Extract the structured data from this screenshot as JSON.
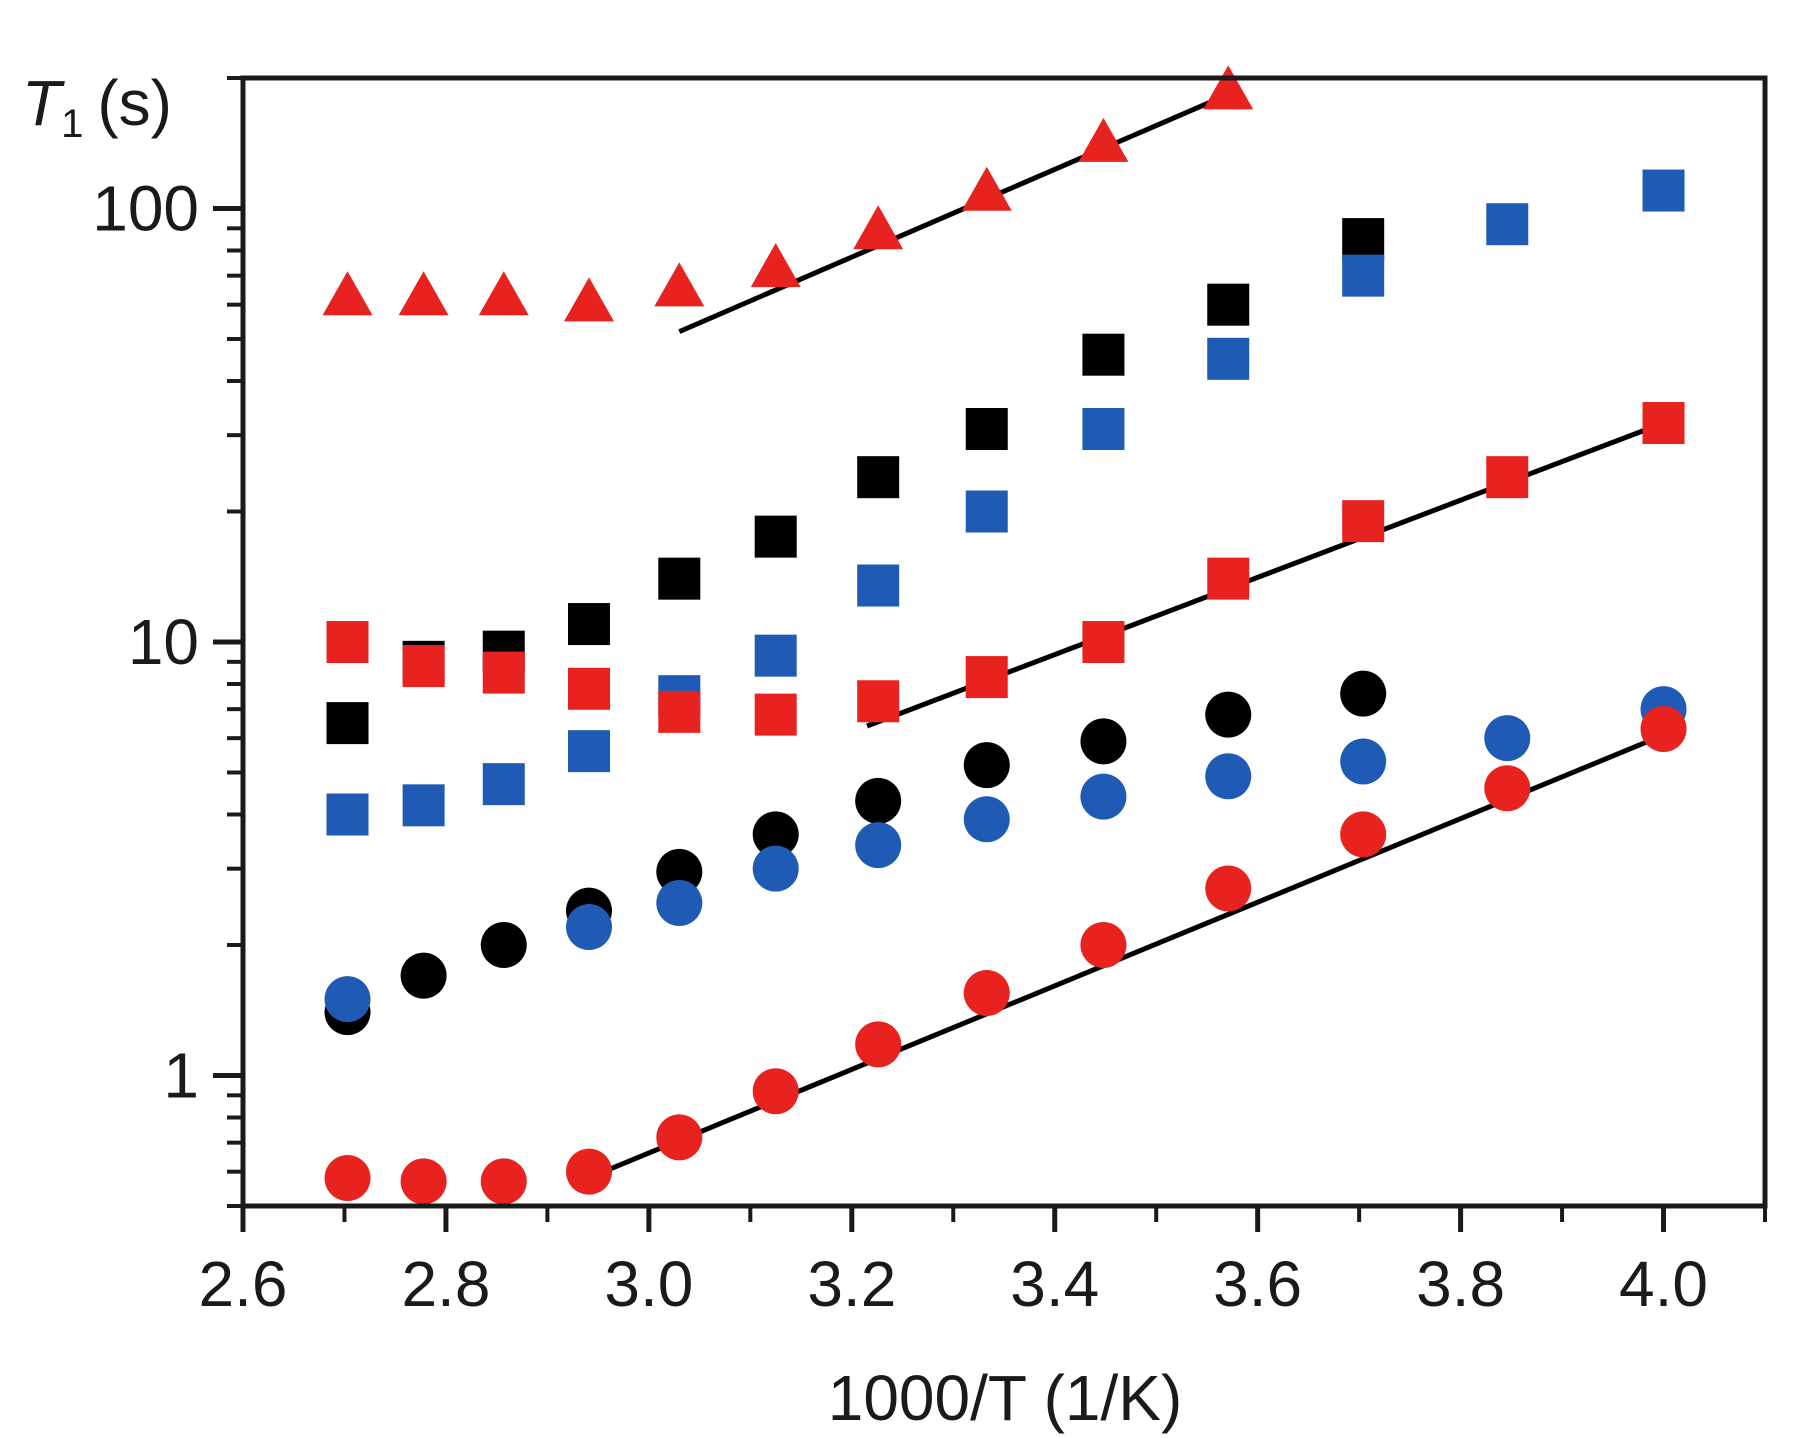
{
  "chart_data": {
    "type": "scatter",
    "title": "",
    "xlabel": "1000/T (1/K)",
    "ylabel": {
      "symbol": "T",
      "subscript": "1",
      "unit": "(s)"
    },
    "xlim": [
      2.6,
      4.1
    ],
    "ylim": [
      0.5,
      200
    ],
    "yscale": "log",
    "x_ticks": [
      "2.6",
      "2.8",
      "3.0",
      "3.2",
      "3.4",
      "3.6",
      "3.8",
      "4.0"
    ],
    "y_ticks": [
      "1",
      "10",
      "100"
    ],
    "grid": false,
    "legend": "none",
    "series": [
      {
        "name": "red-triangles",
        "marker": "triangle",
        "color": "#e8231f",
        "x": [
          2.703,
          2.778,
          2.857,
          2.941,
          3.03,
          3.125,
          3.226,
          3.333,
          3.448,
          3.571
        ],
        "y": [
          62,
          62,
          62,
          60,
          65,
          72,
          88,
          108,
          140,
          185
        ]
      },
      {
        "name": "black-squares",
        "marker": "square",
        "color": "#000000",
        "x": [
          2.703,
          2.778,
          2.857,
          2.941,
          3.03,
          3.125,
          3.226,
          3.333,
          3.448,
          3.571,
          3.704
        ],
        "y": [
          6.5,
          9.0,
          9.5,
          11,
          14,
          17.5,
          24,
          31,
          46,
          60,
          85
        ]
      },
      {
        "name": "blue-squares",
        "marker": "square",
        "color": "#1f5bb5",
        "x": [
          2.703,
          2.778,
          2.857,
          2.941,
          3.03,
          3.125,
          3.226,
          3.333,
          3.448,
          3.571,
          3.704,
          3.846,
          4.0
        ],
        "y": [
          4.0,
          4.2,
          4.7,
          5.6,
          7.5,
          9.3,
          13.5,
          20,
          31,
          45,
          70,
          92,
          110
        ]
      },
      {
        "name": "red-squares",
        "marker": "square",
        "color": "#e8231f",
        "x": [
          2.703,
          2.778,
          2.857,
          2.941,
          3.03,
          3.125,
          3.226,
          3.333,
          3.448,
          3.571,
          3.704,
          3.846,
          4.0
        ],
        "y": [
          10,
          8.8,
          8.5,
          7.8,
          6.9,
          6.8,
          7.3,
          8.3,
          10,
          14,
          19,
          24,
          32
        ]
      },
      {
        "name": "black-circles",
        "marker": "circle",
        "color": "#000000",
        "x": [
          2.703,
          2.778,
          2.857,
          2.941,
          3.03,
          3.125,
          3.226,
          3.333,
          3.448,
          3.571,
          3.704
        ],
        "y": [
          1.4,
          1.7,
          2.0,
          2.4,
          2.95,
          3.6,
          4.3,
          5.2,
          5.9,
          6.8,
          7.6
        ]
      },
      {
        "name": "blue-circles",
        "marker": "circle",
        "color": "#1f5bb5",
        "x": [
          2.703,
          2.941,
          3.03,
          3.125,
          3.226,
          3.333,
          3.448,
          3.571,
          3.704,
          3.846,
          4.0
        ],
        "y": [
          1.5,
          2.2,
          2.5,
          3.0,
          3.4,
          3.9,
          4.4,
          4.9,
          5.3,
          6.0,
          7.0
        ]
      },
      {
        "name": "red-circles",
        "marker": "circle",
        "color": "#e8231f",
        "x": [
          2.703,
          2.778,
          2.857,
          2.941,
          3.03,
          3.125,
          3.226,
          3.333,
          3.448,
          3.571,
          3.704,
          3.846,
          4.0
        ],
        "y": [
          0.58,
          0.57,
          0.57,
          0.6,
          0.72,
          0.92,
          1.18,
          1.55,
          2.0,
          2.7,
          3.6,
          4.6,
          6.3
        ]
      }
    ],
    "fit_lines": [
      {
        "name": "fit-triangles",
        "color": "#000000",
        "x": [
          3.03,
          3.575
        ],
        "y": [
          52,
          185
        ]
      },
      {
        "name": "fit-red-squares",
        "color": "#000000",
        "x": [
          3.215,
          4.0
        ],
        "y": [
          6.4,
          32
        ]
      },
      {
        "name": "fit-red-circles",
        "color": "#000000",
        "x": [
          2.94,
          4.0
        ],
        "y": [
          0.58,
          6.1
        ]
      }
    ]
  }
}
